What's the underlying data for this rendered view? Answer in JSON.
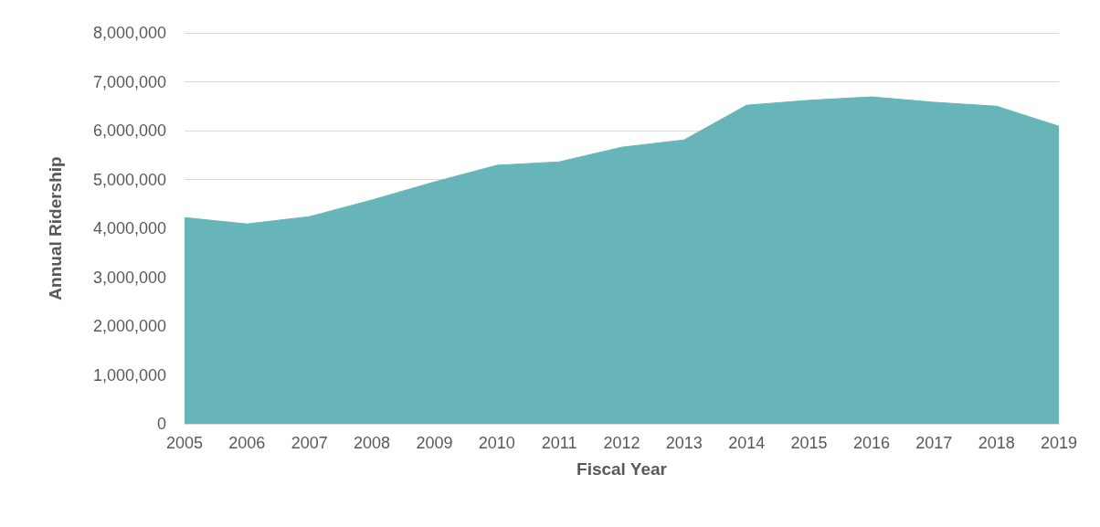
{
  "chart_data": {
    "type": "area",
    "xlabel": "Fiscal Year",
    "ylabel": "Annual Ridership",
    "categories": [
      "2005",
      "2006",
      "2007",
      "2008",
      "2009",
      "2010",
      "2011",
      "2012",
      "2013",
      "2014",
      "2015",
      "2016",
      "2017",
      "2018",
      "2019"
    ],
    "series": [
      {
        "color": "#67b5b9",
        "values": [
          4220000,
          4090000,
          4240000,
          4580000,
          4950000,
          5290000,
          5360000,
          5660000,
          5810000,
          6520000,
          6620000,
          6690000,
          6580000,
          6500000,
          6090000
        ]
      }
    ],
    "ylim": [
      0,
      8000000
    ],
    "yticks": [
      0,
      {
        "value": 1000000,
        "label": "1,000,000"
      },
      {
        "value": 2000000,
        "label": "2,000,000"
      },
      {
        "value": 3000000,
        "label": "3,000,000"
      },
      {
        "value": 4000000,
        "label": "4,000,000"
      },
      {
        "value": 5000000,
        "label": "5,000,000"
      },
      {
        "value": 6000000,
        "label": "6,000,000"
      },
      {
        "value": 7000000,
        "label": "7,000,000"
      },
      {
        "value": 8000000,
        "label": "8,000,000"
      }
    ],
    "grid": "y",
    "marker": "none"
  }
}
